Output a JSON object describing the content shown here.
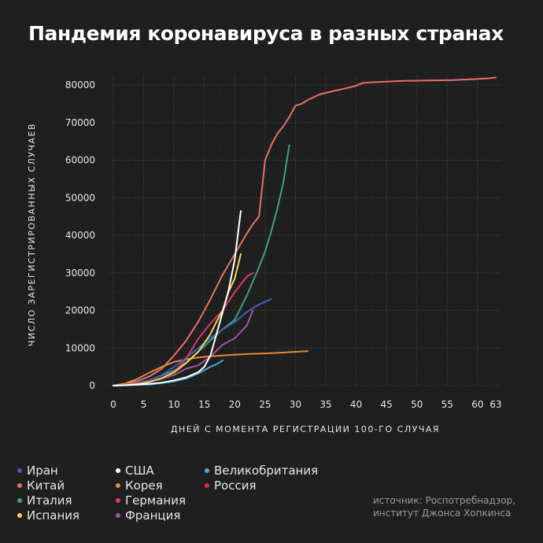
{
  "chart_data": {
    "type": "line",
    "title": "Пандемия коронавируса в разных странах",
    "xlabel": "ДНЕЙ С МОМЕНТА РЕГИСТРАЦИИ 100-ГО СЛУЧАЯ",
    "ylabel": "ЧИСЛО ЗАРЕГИСТРИРОВАННЫХ СЛУЧАЕВ",
    "xlim": [
      0,
      63
    ],
    "ylim": [
      0,
      80000
    ],
    "x_ticks": [
      "0",
      "5",
      "10",
      "15",
      "20",
      "25",
      "30",
      "35",
      "40",
      "45",
      "50",
      "55",
      "60",
      "63"
    ],
    "y_ticks": [
      "0",
      "10000",
      "20000",
      "30000",
      "40000",
      "50000",
      "60000",
      "70000",
      "80000"
    ],
    "grid": true,
    "legend_position": "bottom",
    "source": "источник: Роспотребнадзор,\nинститут Джонса Хопкинса",
    "series": [
      {
        "name": "Иран",
        "color": "#3d5fb8",
        "x": [
          0,
          2,
          4,
          6,
          8,
          10,
          12,
          14,
          16,
          18,
          20,
          22,
          24,
          26
        ],
        "y": [
          0,
          300,
          600,
          1500,
          2800,
          5000,
          7400,
          10000,
          12700,
          14900,
          16900,
          19600,
          21600,
          23000
        ]
      },
      {
        "name": "Китай",
        "color": "#e8706a",
        "x": [
          0,
          2,
          4,
          6,
          8,
          10,
          12,
          14,
          16,
          18,
          20,
          22,
          23,
          24,
          25,
          26,
          27,
          28,
          29,
          30,
          31,
          32,
          34,
          36,
          38,
          40,
          41,
          42,
          45,
          48,
          52,
          56,
          60,
          62,
          63
        ],
        "y": [
          0,
          500,
          1200,
          2500,
          4500,
          8000,
          12000,
          17000,
          23000,
          29500,
          35000,
          40500,
          43000,
          45000,
          60000,
          64000,
          67000,
          69000,
          71500,
          74500,
          75000,
          76000,
          77500,
          78300,
          79000,
          79800,
          80500,
          80700,
          80900,
          81100,
          81200,
          81300,
          81600,
          81800,
          82000
        ]
      },
      {
        "name": "Италия",
        "color": "#3aa57a",
        "x": [
          0,
          2,
          4,
          6,
          8,
          10,
          12,
          14,
          16,
          18,
          20,
          22,
          24,
          25,
          26,
          27,
          28,
          29
        ],
        "y": [
          0,
          300,
          700,
          1500,
          2700,
          4000,
          6200,
          9000,
          12000,
          15000,
          17500,
          24000,
          31500,
          35700,
          41000,
          47000,
          54000,
          64000
        ]
      },
      {
        "name": "Испания",
        "color": "#f2d45a",
        "x": [
          0,
          2,
          4,
          6,
          8,
          10,
          12,
          14,
          16,
          17,
          18,
          19,
          20,
          21
        ],
        "y": [
          0,
          150,
          400,
          1000,
          2000,
          3500,
          6000,
          9000,
          13700,
          17000,
          20000,
          25000,
          28500,
          35000
        ]
      },
      {
        "name": "США",
        "color": "#ffffff",
        "x": [
          0,
          2,
          4,
          6,
          8,
          10,
          12,
          14,
          15,
          16,
          17,
          18,
          19,
          20,
          21
        ],
        "y": [
          0,
          100,
          300,
          500,
          800,
          1400,
          2200,
          3600,
          5000,
          8000,
          13700,
          19500,
          25500,
          33500,
          46500
        ]
      },
      {
        "name": "Корея",
        "color": "#e08a3c",
        "x": [
          0,
          2,
          4,
          6,
          8,
          10,
          12,
          14,
          16,
          18,
          20,
          22,
          24,
          26,
          28,
          30,
          32
        ],
        "y": [
          0,
          600,
          1800,
          3500,
          5000,
          6300,
          7000,
          7500,
          7800,
          8000,
          8200,
          8400,
          8500,
          8650,
          8800,
          9000,
          9150
        ]
      },
      {
        "name": "Германия",
        "color": "#d93a6b",
        "x": [
          0,
          2,
          4,
          6,
          8,
          10,
          12,
          14,
          16,
          18,
          20,
          22,
          23
        ],
        "y": [
          0,
          200,
          500,
          1000,
          1900,
          3600,
          7200,
          12500,
          16500,
          20000,
          24900,
          29000,
          30000
        ]
      },
      {
        "name": "Франция",
        "color": "#a453a6",
        "x": [
          0,
          2,
          4,
          6,
          8,
          10,
          12,
          14,
          16,
          18,
          20,
          22,
          23
        ],
        "y": [
          0,
          150,
          400,
          1100,
          1800,
          2800,
          4500,
          5400,
          7700,
          10900,
          12600,
          16000,
          20000
        ]
      },
      {
        "name": "Великобритания",
        "color": "#4aa8d8",
        "x": [
          0,
          2,
          4,
          6,
          8,
          10,
          12,
          14,
          16,
          17,
          18
        ],
        "y": [
          0,
          100,
          200,
          300,
          700,
          1100,
          1900,
          3200,
          5000,
          5700,
          6700
        ]
      },
      {
        "name": "Россия",
        "color": "#d8322f",
        "x": [],
        "y": []
      }
    ]
  }
}
